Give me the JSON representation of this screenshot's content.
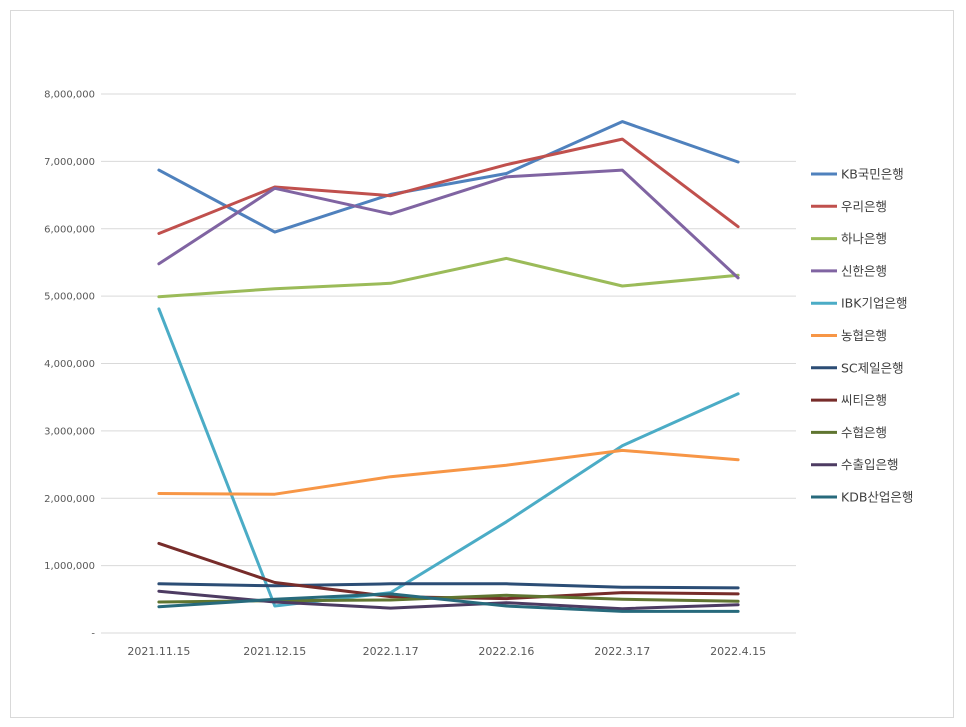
{
  "chart_data": {
    "type": "line",
    "title": "",
    "xlabel": "",
    "ylabel": "",
    "categories": [
      "2021.11.15",
      "2021.12.15",
      "2022.1.17",
      "2022.2.16",
      "2022.3.17",
      "2022.4.15"
    ],
    "ylim": [
      0,
      8000000
    ],
    "yticks": [
      0,
      1000000,
      2000000,
      3000000,
      4000000,
      5000000,
      6000000,
      7000000,
      8000000
    ],
    "ytick_labels": [
      "-",
      "1,000,000",
      "2,000,000",
      "3,000,000",
      "4,000,000",
      "5,000,000",
      "6,000,000",
      "7,000,000",
      "8,000,000"
    ],
    "grid": true,
    "legend_position": "right",
    "series": [
      {
        "name": "KB국민은행",
        "color": "#4f81bd",
        "values": [
          6870000,
          5950000,
          6510000,
          6820000,
          7590000,
          6990000
        ]
      },
      {
        "name": "우리은행",
        "color": "#c0504d",
        "values": [
          5930000,
          6620000,
          6490000,
          6950000,
          7330000,
          6030000
        ]
      },
      {
        "name": "하나은행",
        "color": "#9bbb59",
        "values": [
          4990000,
          5110000,
          5190000,
          5560000,
          5150000,
          5310000
        ]
      },
      {
        "name": "신한은행",
        "color": "#8064a2",
        "values": [
          5480000,
          6600000,
          6220000,
          6770000,
          6870000,
          5270000
        ]
      },
      {
        "name": "IBK기업은행",
        "color": "#4bacc6",
        "values": [
          4810000,
          400000,
          600000,
          1650000,
          2780000,
          3550000
        ]
      },
      {
        "name": "농협은행",
        "color": "#f79646",
        "values": [
          2070000,
          2060000,
          2320000,
          2490000,
          2710000,
          2570000
        ]
      },
      {
        "name": "SC제일은행",
        "color": "#2c4d75",
        "values": [
          730000,
          700000,
          730000,
          730000,
          680000,
          670000
        ]
      },
      {
        "name": "씨티은행",
        "color": "#772c2a",
        "values": [
          1330000,
          750000,
          540000,
          510000,
          600000,
          580000
        ]
      },
      {
        "name": "수협은행",
        "color": "#5f7530",
        "values": [
          460000,
          480000,
          490000,
          560000,
          500000,
          470000
        ]
      },
      {
        "name": "수출입은행",
        "color": "#4d3b62",
        "values": [
          620000,
          460000,
          370000,
          450000,
          360000,
          420000
        ]
      },
      {
        "name": "KDB산업은행",
        "color": "#276a7c",
        "values": [
          390000,
          500000,
          580000,
          400000,
          320000,
          320000
        ]
      }
    ]
  }
}
